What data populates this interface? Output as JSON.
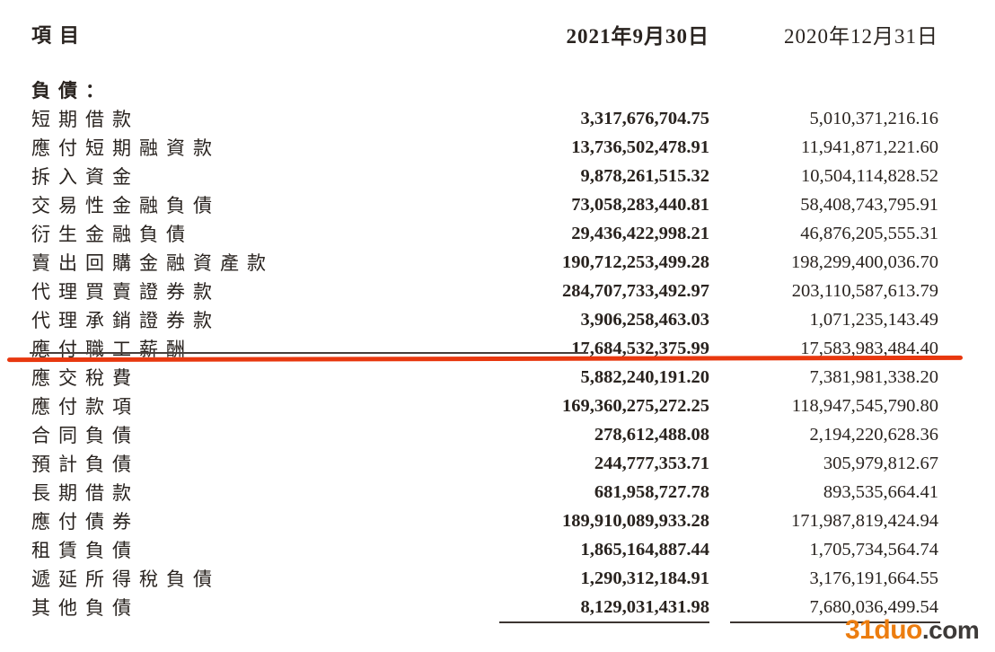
{
  "table": {
    "header": {
      "item": "項目",
      "col_2021": "2021年9月30日",
      "col_2020": "2020年12月31日"
    },
    "section": "負債：",
    "rows": [
      {
        "label": "短期借款",
        "v2021": "3,317,676,704.75",
        "v2020": "5,010,371,216.16"
      },
      {
        "label": "應付短期融資款",
        "v2021": "13,736,502,478.91",
        "v2020": "11,941,871,221.60"
      },
      {
        "label": "拆入資金",
        "v2021": "9,878,261,515.32",
        "v2020": "10,504,114,828.52"
      },
      {
        "label": "交易性金融負債",
        "v2021": "73,058,283,440.81",
        "v2020": "58,408,743,795.91"
      },
      {
        "label": "衍生金融負債",
        "v2021": "29,436,422,998.21",
        "v2020": "46,876,205,555.31"
      },
      {
        "label": "賣出回購金融資產款",
        "v2021": "190,712,253,499.28",
        "v2020": "198,299,400,036.70"
      },
      {
        "label": "代理買賣證券款",
        "v2021": "284,707,733,492.97",
        "v2020": "203,110,587,613.79"
      },
      {
        "label": "代理承銷證券款",
        "v2021": "3,906,258,463.03",
        "v2020": "1,071,235,143.49"
      },
      {
        "label": "應付職工薪酬",
        "v2021": "17,684,532,375.99",
        "v2020": "17,583,983,484.40"
      },
      {
        "label": "應交稅費",
        "v2021": "5,882,240,191.20",
        "v2020": "7,381,981,338.20"
      },
      {
        "label": "應付款項",
        "v2021": "169,360,275,272.25",
        "v2020": "118,947,545,790.80"
      },
      {
        "label": "合同負債",
        "v2021": "278,612,488.08",
        "v2020": "2,194,220,628.36"
      },
      {
        "label": "預計負債",
        "v2021": "244,777,353.71",
        "v2020": "305,979,812.67"
      },
      {
        "label": "長期借款",
        "v2021": "681,958,727.78",
        "v2020": "893,535,664.41"
      },
      {
        "label": "應付債券",
        "v2021": "189,910,089,933.28",
        "v2020": "171,987,819,424.94"
      },
      {
        "label": "租賃負債",
        "v2021": "1,865,164,887.44",
        "v2020": "1,705,734,564.74"
      },
      {
        "label": "遞延所得稅負債",
        "v2021": "1,290,312,184.91",
        "v2020": "3,176,191,664.55"
      },
      {
        "label": "其他負債",
        "v2021": "8,129,031,431.98",
        "v2020": "7,680,036,499.54"
      }
    ],
    "annotation": {
      "type": "red-underline",
      "highlighted_row_label": "應付職工薪酬",
      "row_index": 8,
      "color": "#e8380f"
    }
  },
  "watermark": {
    "brand": "31duo",
    "suffix": ".com",
    "brand_color": "#ec7d10",
    "suffix_color": "#3d3a38"
  }
}
